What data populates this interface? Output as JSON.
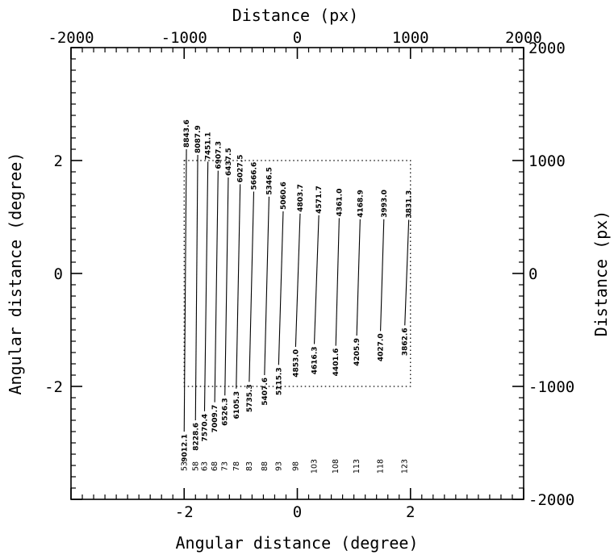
{
  "chart_data": {
    "type": "line",
    "xlabel_bottom": "Angular distance (degree)",
    "xlabel_top": "Distance (px)",
    "ylabel_left": "Angular distance (degree)",
    "ylabel_right": "Distance (px)",
    "xlim_degree": [
      -4.0,
      4.0
    ],
    "ylim_degree": [
      -4.0,
      4.0
    ],
    "xlim_px": [
      -2000,
      2000
    ],
    "ylim_px": [
      -2000,
      2000
    ],
    "bottom_ticks": [
      "-2",
      "0",
      "2"
    ],
    "left_ticks": [
      "-2",
      "0",
      "2"
    ],
    "top_ticks": [
      "-2000",
      "-1000",
      "0",
      "1000",
      "2000"
    ],
    "right_ticks": [
      "-2000",
      "-1000",
      "0",
      "1000",
      "2000"
    ],
    "dotted_box": {
      "x": [
        -2.0,
        2.0
      ],
      "y": [
        -2.0,
        2.0
      ]
    },
    "series": [
      {
        "column": "53",
        "top_value": "8843.6",
        "bottom_value": "9012.1",
        "x_top": -1.96,
        "y_top": 2.2,
        "x_bottom": -2.0,
        "y_bottom": -2.8
      },
      {
        "column": "58",
        "top_value": "8087.9",
        "bottom_value": "8228.6",
        "x_top": -1.76,
        "y_top": 2.1,
        "x_bottom": -1.8,
        "y_bottom": -2.6
      },
      {
        "column": "63",
        "top_value": "7451.1",
        "bottom_value": "7570.4",
        "x_top": -1.58,
        "y_top": 1.98,
        "x_bottom": -1.64,
        "y_bottom": -2.44
      },
      {
        "column": "68",
        "top_value": "6907.3",
        "bottom_value": "7009.7",
        "x_top": -1.4,
        "y_top": 1.82,
        "x_bottom": -1.46,
        "y_bottom": -2.28
      },
      {
        "column": "73",
        "top_value": "6437.5",
        "bottom_value": "6526.3",
        "x_top": -1.22,
        "y_top": 1.7,
        "x_bottom": -1.28,
        "y_bottom": -2.16
      },
      {
        "column": "78",
        "top_value": "6027.5",
        "bottom_value": "6105.3",
        "x_top": -1.01,
        "y_top": 1.58,
        "x_bottom": -1.08,
        "y_bottom": -2.04
      },
      {
        "column": "83",
        "top_value": "5666.6",
        "bottom_value": "5735.3",
        "x_top": -0.77,
        "y_top": 1.45,
        "x_bottom": -0.85,
        "y_bottom": -1.92
      },
      {
        "column": "88",
        "top_value": "5346.5",
        "bottom_value": "5407.6",
        "x_top": -0.5,
        "y_top": 1.36,
        "x_bottom": -0.58,
        "y_bottom": -1.8
      },
      {
        "column": "93",
        "top_value": "5060.6",
        "bottom_value": "5115.3",
        "x_top": -0.25,
        "y_top": 1.1,
        "x_bottom": -0.33,
        "y_bottom": -1.62
      },
      {
        "column": "98",
        "top_value": "4803.7",
        "bottom_value": "4853.0",
        "x_top": 0.05,
        "y_top": 1.06,
        "x_bottom": -0.03,
        "y_bottom": -1.3
      },
      {
        "column": "103",
        "top_value": "4571.7",
        "bottom_value": "4616.3",
        "x_top": 0.38,
        "y_top": 1.03,
        "x_bottom": 0.3,
        "y_bottom": -1.25
      },
      {
        "column": "108",
        "top_value": "4361.0",
        "bottom_value": "4401.6",
        "x_top": 0.74,
        "y_top": 0.98,
        "x_bottom": 0.68,
        "y_bottom": -1.28
      },
      {
        "column": "113",
        "top_value": "4168.9",
        "bottom_value": "4205.9",
        "x_top": 1.11,
        "y_top": 0.96,
        "x_bottom": 1.05,
        "y_bottom": -1.1
      },
      {
        "column": "118",
        "top_value": "3993.0",
        "bottom_value": "4027.0",
        "x_top": 1.53,
        "y_top": 0.96,
        "x_bottom": 1.47,
        "y_bottom": -1.02
      },
      {
        "column": "123",
        "top_value": "3831.3",
        "bottom_value": "3862.6",
        "x_top": 1.97,
        "y_top": 0.95,
        "x_bottom": 1.9,
        "y_bottom": -0.92
      }
    ]
  }
}
